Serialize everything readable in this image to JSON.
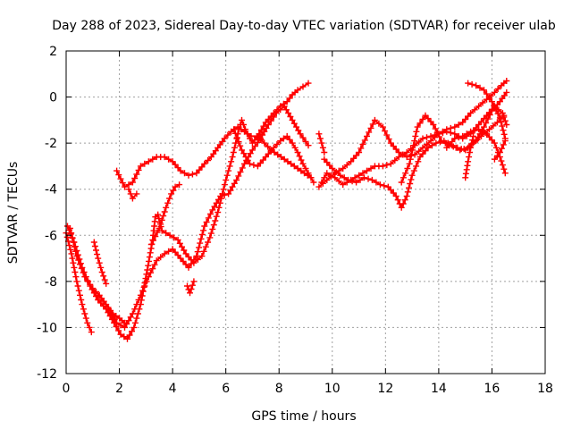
{
  "chart_data": {
    "type": "scatter",
    "title": "Day 288 of 2023, Sidereal Day-to-day VTEC variation (SDTVAR) for receiver ulab",
    "xlabel": "GPS time / hours",
    "ylabel": "SDTVAR / TECUs",
    "xlim": [
      0,
      18
    ],
    "ylim": [
      -12,
      2
    ],
    "xticks": [
      0,
      2,
      4,
      6,
      8,
      10,
      12,
      14,
      16,
      18
    ],
    "yticks": [
      -12,
      -10,
      -8,
      -6,
      -4,
      -2,
      0,
      2
    ],
    "grid": true,
    "marker": "+",
    "color": "#ff0000",
    "series": [
      {
        "name": "s1",
        "x": [
          0.0,
          0.2,
          0.4,
          0.6,
          0.8,
          0.95
        ],
        "y": [
          -5.9,
          -6.8,
          -8.0,
          -9.0,
          -9.8,
          -10.2
        ]
      },
      {
        "name": "s2",
        "x": [
          0.05,
          0.3,
          0.6,
          0.9,
          1.2,
          1.5,
          1.8,
          2.05,
          2.3,
          2.55,
          2.8,
          3.05,
          3.25,
          3.35,
          3.45,
          3.6,
          3.9,
          4.2,
          4.5,
          4.8,
          5.1,
          5.4,
          5.7,
          6.0,
          6.25,
          6.45,
          6.6,
          6.8,
          7.0,
          7.25,
          7.5,
          7.8,
          8.05,
          8.3,
          8.5,
          8.7,
          8.9,
          9.1
        ],
        "y": [
          -5.6,
          -6.3,
          -7.4,
          -8.2,
          -8.8,
          -9.2,
          -9.8,
          -10.3,
          -10.5,
          -10.0,
          -9.0,
          -7.5,
          -6.2,
          -5.2,
          -5.1,
          -5.8,
          -6.0,
          -6.2,
          -6.8,
          -7.2,
          -6.9,
          -6.1,
          -5.0,
          -3.6,
          -2.6,
          -1.6,
          -1.0,
          -1.6,
          -2.0,
          -1.6,
          -1.1,
          -0.7,
          -0.4,
          -0.2,
          0.1,
          0.3,
          0.45,
          0.6
        ]
      },
      {
        "name": "s3",
        "x": [
          0.15,
          0.4,
          0.7,
          1.0,
          1.25,
          1.5,
          1.75,
          2.0,
          2.2
        ],
        "y": [
          -5.7,
          -6.9,
          -7.8,
          -8.3,
          -8.6,
          -9.0,
          -9.4,
          -9.6,
          -9.8
        ]
      },
      {
        "name": "s4",
        "x": [
          1.05,
          1.2,
          1.35,
          1.5
        ],
        "y": [
          -6.3,
          -7.0,
          -7.6,
          -8.1
        ]
      },
      {
        "name": "s5",
        "x": [
          1.9,
          2.2,
          2.5,
          2.8,
          3.1,
          3.4,
          3.7,
          4.0,
          4.3,
          4.6,
          4.9,
          5.2,
          5.45,
          5.7,
          5.95,
          6.2,
          6.45,
          6.7,
          6.95,
          7.2,
          7.45,
          7.7,
          7.95,
          8.2,
          8.45,
          8.7,
          8.95,
          9.2
        ],
        "y": [
          -3.2,
          -3.9,
          -3.7,
          -3.0,
          -2.8,
          -2.6,
          -2.6,
          -2.8,
          -3.2,
          -3.4,
          -3.3,
          -2.9,
          -2.6,
          -2.2,
          -1.8,
          -1.5,
          -1.3,
          -1.5,
          -1.7,
          -1.7,
          -2.0,
          -2.3,
          -2.5,
          -2.7,
          -2.9,
          -3.1,
          -3.3,
          -3.5
        ]
      },
      {
        "name": "s6",
        "x": [
          2.35,
          2.5,
          2.65
        ],
        "y": [
          -4.0,
          -4.4,
          -4.2
        ]
      },
      {
        "name": "s7",
        "x": [
          1.6,
          1.9,
          2.2,
          2.5,
          2.8,
          3.1,
          3.4,
          3.7,
          4.0,
          4.3,
          4.6,
          4.9,
          5.2,
          5.5,
          5.8,
          6.1,
          6.4,
          6.7,
          7.0,
          7.3,
          7.6,
          7.9,
          8.2,
          8.5,
          8.8,
          9.1
        ],
        "y": [
          -9.2,
          -9.8,
          -10.0,
          -9.4,
          -8.6,
          -7.8,
          -7.1,
          -6.8,
          -6.6,
          -7.0,
          -7.4,
          -6.9,
          -5.6,
          -4.9,
          -4.3,
          -4.2,
          -3.6,
          -2.9,
          -2.3,
          -1.8,
          -1.2,
          -0.7,
          -0.4,
          -1.0,
          -1.6,
          -2.1
        ]
      },
      {
        "name": "s8",
        "x": [
          4.55,
          4.65,
          4.8
        ],
        "y": [
          -8.2,
          -8.5,
          -8.0
        ]
      },
      {
        "name": "s9",
        "x": [
          3.2,
          3.5,
          3.75,
          3.95,
          4.1,
          4.25
        ],
        "y": [
          -6.4,
          -5.7,
          -4.8,
          -4.2,
          -3.9,
          -3.8
        ]
      },
      {
        "name": "s10",
        "x": [
          6.3,
          6.6,
          6.9,
          7.2,
          7.5,
          7.8,
          8.05,
          8.3,
          8.5,
          8.7,
          8.9,
          9.1,
          9.3
        ],
        "y": [
          -1.4,
          -2.3,
          -2.9,
          -3.0,
          -2.6,
          -2.2,
          -1.9,
          -1.7,
          -2.0,
          -2.4,
          -2.9,
          -3.3,
          -3.7
        ]
      },
      {
        "name": "s11",
        "x": [
          9.6,
          9.8,
          10.1,
          10.4,
          10.7,
          11.0,
          11.3,
          11.6,
          11.9,
          12.2,
          12.5,
          12.8,
          13.1,
          13.4,
          13.7,
          14.0,
          14.3,
          14.6,
          14.9,
          15.2,
          15.5,
          15.8,
          16.1,
          16.35,
          16.55
        ],
        "y": [
          -3.7,
          -3.3,
          -3.5,
          -3.8,
          -3.6,
          -3.4,
          -3.2,
          -3.0,
          -3.0,
          -2.9,
          -2.6,
          -2.4,
          -2.1,
          -1.8,
          -1.7,
          -1.6,
          -1.4,
          -1.3,
          -1.1,
          -0.7,
          -0.4,
          -0.1,
          0.2,
          0.5,
          0.7
        ]
      },
      {
        "name": "s12",
        "x": [
          9.7,
          10.0,
          10.3,
          10.6,
          10.9,
          11.2,
          11.5,
          11.8,
          12.1,
          12.4,
          12.6,
          12.8,
          13.0,
          13.3,
          13.6,
          13.9,
          14.2,
          14.5,
          14.8,
          15.1,
          15.4,
          15.7,
          16.0,
          16.3,
          16.55
        ],
        "y": [
          -2.7,
          -3.1,
          -3.4,
          -3.6,
          -3.7,
          -3.5,
          -3.6,
          -3.8,
          -3.9,
          -4.3,
          -4.8,
          -4.3,
          -3.4,
          -2.6,
          -2.2,
          -2.0,
          -1.9,
          -2.1,
          -2.3,
          -2.2,
          -1.9,
          -1.3,
          -0.6,
          -0.2,
          0.2
        ]
      },
      {
        "name": "s13",
        "x": [
          9.5,
          9.6,
          9.7
        ],
        "y": [
          -1.6,
          -2.0,
          -2.4
        ]
      },
      {
        "name": "s14",
        "x": [
          9.5,
          9.8,
          10.1,
          10.4,
          10.7,
          11.0,
          11.3,
          11.6,
          11.9,
          12.2,
          12.5,
          12.8,
          13.1,
          13.4,
          13.7,
          14.0,
          14.3,
          14.6,
          14.9,
          15.2,
          15.5,
          15.8,
          16.1,
          16.4,
          16.55
        ],
        "y": [
          -3.9,
          -3.6,
          -3.3,
          -3.1,
          -2.8,
          -2.4,
          -1.7,
          -1.0,
          -1.3,
          -2.0,
          -2.4,
          -2.6,
          -2.5,
          -2.2,
          -1.9,
          -1.6,
          -1.5,
          -1.6,
          -1.8,
          -1.6,
          -1.2,
          -0.8,
          -0.4,
          -0.7,
          -1.2
        ]
      },
      {
        "name": "s15",
        "x": [
          12.6,
          12.9,
          13.2,
          13.5,
          13.8,
          14.1,
          14.4,
          14.7,
          15.0,
          15.3,
          15.6,
          15.9,
          16.2,
          16.45
        ],
        "y": [
          -3.7,
          -2.9,
          -1.3,
          -0.8,
          -1.2,
          -1.9,
          -2.1,
          -2.2,
          -2.3,
          -2.0,
          -1.7,
          -1.4,
          -1.1,
          -0.8
        ]
      },
      {
        "name": "s16",
        "x": [
          14.3,
          14.6,
          14.9,
          15.2,
          15.5,
          15.8,
          16.1,
          16.3,
          16.5
        ],
        "y": [
          -2.2,
          -1.8,
          -1.7,
          -1.5,
          -1.4,
          -1.6,
          -2.0,
          -2.6,
          -3.3
        ]
      },
      {
        "name": "s17",
        "x": [
          15.0,
          15.1,
          15.2,
          15.3
        ],
        "y": [
          -3.5,
          -2.8,
          -2.2,
          -1.7
        ]
      },
      {
        "name": "s18",
        "x": [
          15.1,
          15.4,
          15.7,
          16.0,
          16.3,
          16.5
        ],
        "y": [
          0.6,
          0.5,
          0.3,
          -0.2,
          -0.9,
          -1.8
        ]
      },
      {
        "name": "s19",
        "x": [
          16.1,
          16.3,
          16.5
        ],
        "y": [
          -2.7,
          -2.4,
          -1.9
        ]
      }
    ]
  }
}
